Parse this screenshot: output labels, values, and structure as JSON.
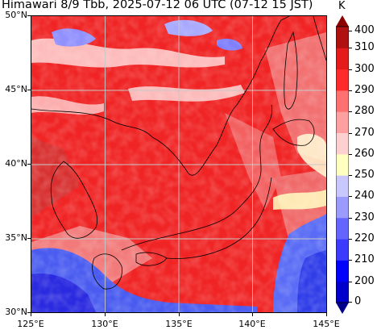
{
  "title": "Himawari 8/9 Tbb, 2025-07-12 06 UTC (07-12 15 JST)",
  "y_axis_labels": [
    "50°N",
    "45°N",
    "40°N",
    "35°N",
    "30°N"
  ],
  "x_axis_labels": [
    "125°E",
    "130°E",
    "135°E",
    "140°E",
    "145°E"
  ],
  "colorbar": {
    "unit": "K",
    "labels": [
      "400",
      "310",
      "300",
      "290",
      "280",
      "270",
      "260",
      "250",
      "240",
      "230",
      "220",
      "210",
      "200",
      "0"
    ],
    "colors_bottom_to_top": [
      "#00008b",
      "#0000cd",
      "#0000ff",
      "#3b3bff",
      "#6464ff",
      "#9a9aff",
      "#c8c8ff",
      "#ffffc0",
      "#ffd0d0",
      "#ffa0a0",
      "#ff7070",
      "#ff2a2a",
      "#e51a1a",
      "#b01010",
      "#8b0000"
    ]
  },
  "colors": {
    "land_ocean_base": "#f02424",
    "cloud_cold": "#4a5cf0",
    "coastline": "#000000",
    "grid": "#c8c8c8"
  }
}
